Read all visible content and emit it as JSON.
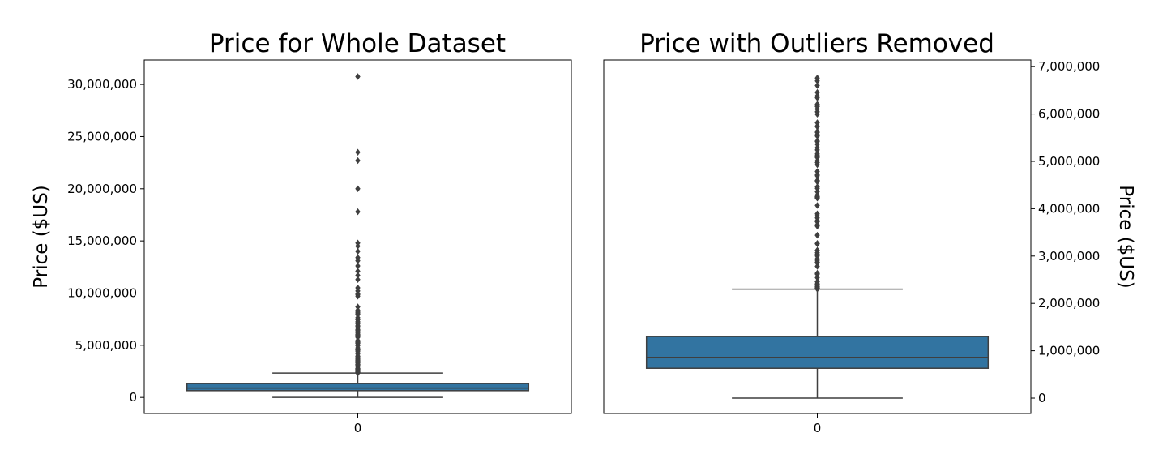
{
  "colors": {
    "box_fill": "#3274a1",
    "line": "#3f3f3f",
    "axes": "#000000",
    "background": "#ffffff"
  },
  "chart_data": [
    {
      "type": "boxplot",
      "title": "Price for Whole Dataset",
      "ylabel": "Price ($US)",
      "ylabel_side": "left",
      "yticks": [
        0,
        5000000,
        10000000,
        15000000,
        20000000,
        25000000,
        30000000
      ],
      "ytick_labels": [
        "0",
        "5,000,000",
        "10,000,000",
        "15,000,000",
        "20,000,000",
        "25,000,000",
        "30,000,000"
      ],
      "ylim": [
        -1540000,
        32340000
      ],
      "categories": [
        "0"
      ],
      "boxes": [
        {
          "category": "0",
          "whisker_low": 0,
          "q1": 650000,
          "median": 900000,
          "q3": 1330000,
          "whisker_high": 2340000,
          "outliers_dense_range": [
            2340000,
            10000000
          ],
          "outliers": [
            10200000,
            10500000,
            11300000,
            11700000,
            12100000,
            12600000,
            13100000,
            13400000,
            14000000,
            14500000,
            14800000,
            17800000,
            20000000,
            22700000,
            23500000,
            30750000
          ]
        }
      ]
    },
    {
      "type": "boxplot",
      "title": "Price with Outliers Removed",
      "ylabel": "Price ($US)",
      "ylabel_side": "right",
      "yticks": [
        0,
        1000000,
        2000000,
        3000000,
        4000000,
        5000000,
        6000000,
        7000000
      ],
      "ytick_labels": [
        "0",
        "1,000,000",
        "2,000,000",
        "3,000,000",
        "4,000,000",
        "5,000,000",
        "6,000,000",
        "7,000,000"
      ],
      "ylim": [
        -325000,
        7140000
      ],
      "categories": [
        "0"
      ],
      "boxes": [
        {
          "category": "0",
          "whisker_low": 0,
          "q1": 630000,
          "median": 860000,
          "q3": 1300000,
          "whisker_high": 2300000,
          "outliers_dense_range": [
            2300000,
            6500000
          ],
          "outliers": [
            6600000,
            6700000,
            6760000
          ]
        }
      ]
    }
  ]
}
